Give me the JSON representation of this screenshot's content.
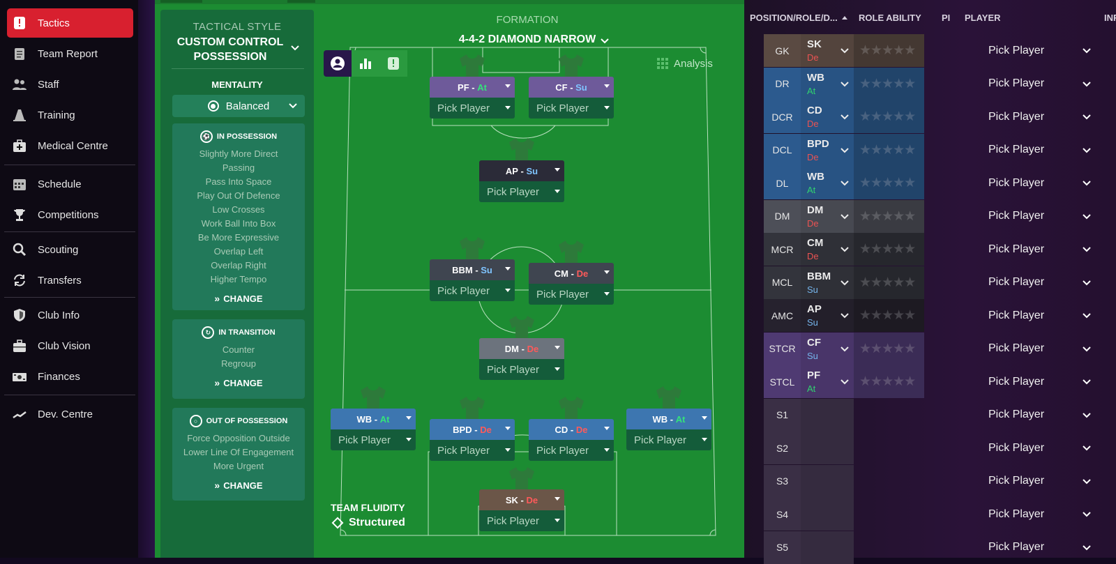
{
  "sidebar": {
    "items": [
      {
        "label": "Tactics",
        "icon": "tactics-icon"
      },
      {
        "label": "Team Report",
        "icon": "clipboard-icon"
      },
      {
        "label": "Staff",
        "icon": "staff-icon"
      },
      {
        "label": "Training",
        "icon": "training-cone-icon"
      },
      {
        "label": "Medical Centre",
        "icon": "medical-kit-icon"
      },
      {
        "label": "Schedule",
        "icon": "calendar-icon"
      },
      {
        "label": "Competitions",
        "icon": "trophy-icon"
      },
      {
        "label": "Scouting",
        "icon": "magnifier-icon"
      },
      {
        "label": "Transfers",
        "icon": "transfer-arrows-icon"
      },
      {
        "label": "Club Info",
        "icon": "shield-icon"
      },
      {
        "label": "Club Vision",
        "icon": "briefcase-icon"
      },
      {
        "label": "Finances",
        "icon": "banknote-icon"
      },
      {
        "label": "Dev. Centre",
        "icon": "growth-chart-icon"
      }
    ]
  },
  "tactical_style": {
    "label": "TACTICAL STYLE",
    "value": "CUSTOM CONTROL POSSESSION"
  },
  "mentality": {
    "label": "MENTALITY",
    "value": "Balanced"
  },
  "in_possession": {
    "title": "IN POSSESSION",
    "items": [
      "Slightly More Direct",
      "Passing",
      "Pass Into Space",
      "Play Out Of Defence",
      "Low Crosses",
      "Work Ball Into Box",
      "Be More Expressive",
      "Overlap Left",
      "Overlap Right",
      "Higher Tempo"
    ],
    "change_label": "CHANGE"
  },
  "in_transition": {
    "title": "IN TRANSITION",
    "items": [
      "Counter",
      "Regroup"
    ],
    "change_label": "CHANGE"
  },
  "out_of_possession": {
    "title": "OUT OF POSSESSION",
    "items": [
      "Force Opposition Outside",
      "Lower Line Of Engagement",
      "More Urgent"
    ],
    "change_label": "CHANGE"
  },
  "formation": {
    "label": "FORMATION",
    "value": "4-4-2 DIAMOND NARROW"
  },
  "analysis_label": "Analysis",
  "team_fluidity": {
    "label": "TEAM FLUIDITY",
    "value": "Structured"
  },
  "pitch_players": [
    {
      "role": "PF",
      "duty": "At",
      "pick": "Pick Player",
      "color": "#6e5a9a"
    },
    {
      "role": "CF",
      "duty": "Su",
      "pick": "Pick Player",
      "color": "#6e5a9a"
    },
    {
      "role": "AP",
      "duty": "Su",
      "pick": "Pick Player",
      "color": "#2b2b38"
    },
    {
      "role": "BBM",
      "duty": "Su",
      "pick": "Pick Player",
      "color": "#3f4550"
    },
    {
      "role": "CM",
      "duty": "De",
      "pick": "Pick Player",
      "color": "#3f4550"
    },
    {
      "role": "DM",
      "duty": "De",
      "pick": "Pick Player",
      "color": "#6c737d"
    },
    {
      "role": "WB",
      "duty": "At",
      "pick": "Pick Player",
      "color": "#3d76b0"
    },
    {
      "role": "BPD",
      "duty": "De",
      "pick": "Pick Player",
      "color": "#3d76b0"
    },
    {
      "role": "CD",
      "duty": "De",
      "pick": "Pick Player",
      "color": "#3d76b0"
    },
    {
      "role": "WB",
      "duty": "At",
      "pick": "Pick Player",
      "color": "#3d76b0"
    },
    {
      "role": "SK",
      "duty": "De",
      "pick": "Pick Player",
      "color": "#6b5648"
    }
  ],
  "selection_table": {
    "headers": {
      "position": "POSITION/ROLE/D...",
      "ability": "ROLE ABILITY",
      "pi": "PI",
      "player": "PLAYER",
      "info": "INF"
    },
    "rows": [
      {
        "pos": "GK",
        "role": "SK",
        "duty": "De",
        "player": "Pick Player",
        "color": "#5a4a42"
      },
      {
        "pos": "DR",
        "role": "WB",
        "duty": "At",
        "player": "Pick Player",
        "color": "#2c5a8e"
      },
      {
        "pos": "DCR",
        "role": "CD",
        "duty": "De",
        "player": "Pick Player",
        "color": "#2c5a8e"
      },
      {
        "pos": "DCL",
        "role": "BPD",
        "duty": "De",
        "player": "Pick Player",
        "color": "#2c5a8e"
      },
      {
        "pos": "DL",
        "role": "WB",
        "duty": "At",
        "player": "Pick Player",
        "color": "#2c5a8e"
      },
      {
        "pos": "DM",
        "role": "DM",
        "duty": "De",
        "player": "Pick Player",
        "color": "#4d4f58"
      },
      {
        "pos": "MCR",
        "role": "CM",
        "duty": "De",
        "player": "Pick Player",
        "color": "#33343c"
      },
      {
        "pos": "MCL",
        "role": "BBM",
        "duty": "Su",
        "player": "Pick Player",
        "color": "#33343c"
      },
      {
        "pos": "AMC",
        "role": "AP",
        "duty": "Su",
        "player": "Pick Player",
        "color": "#26222e"
      },
      {
        "pos": "STCR",
        "role": "CF",
        "duty": "Su",
        "player": "Pick Player",
        "color": "#4f3a72"
      },
      {
        "pos": "STCL",
        "role": "PF",
        "duty": "At",
        "player": "Pick Player",
        "color": "#4f3a72"
      },
      {
        "pos": "S1",
        "role": "",
        "duty": "",
        "player": "Pick Player",
        "color": "#3a2f45"
      },
      {
        "pos": "S2",
        "role": "",
        "duty": "",
        "player": "Pick Player",
        "color": "#3a2f45"
      },
      {
        "pos": "S3",
        "role": "",
        "duty": "",
        "player": "Pick Player",
        "color": "#3a2f45"
      },
      {
        "pos": "S4",
        "role": "",
        "duty": "",
        "player": "Pick Player",
        "color": "#3a2f45"
      },
      {
        "pos": "S5",
        "role": "",
        "duty": "",
        "player": "Pick Player",
        "color": "#3a2f45"
      }
    ]
  },
  "colors": {
    "accent": "#d8202f",
    "pitch": "#1c8c32",
    "duty_attack": "#34e37a",
    "duty_support": "#7fc4ff",
    "duty_defend": "#ff5a5a"
  }
}
